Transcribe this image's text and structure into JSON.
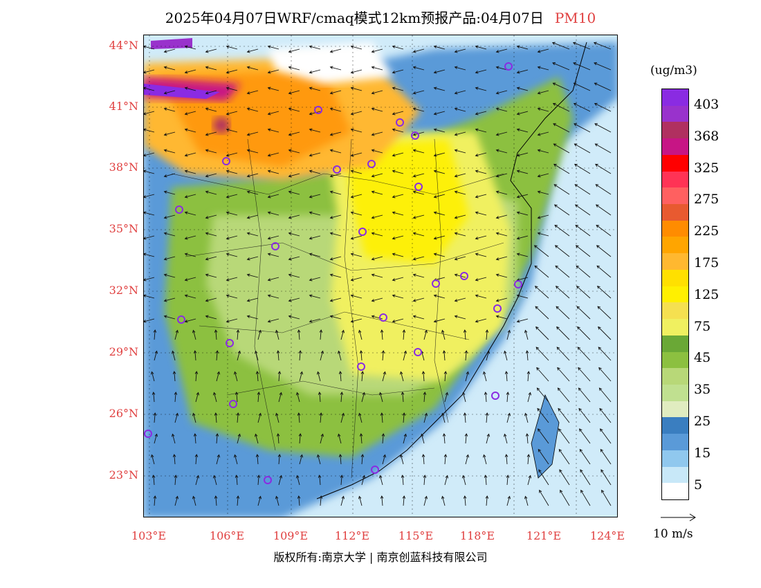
{
  "title": "2025年04月07日WRF/cmaq模式12km预报产品:04月07日",
  "pollutant": "PM10",
  "lat_labels": [
    "44°N",
    "41°N",
    "38°N",
    "35°N",
    "32°N",
    "29°N",
    "26°N",
    "23°N"
  ],
  "lon_labels": [
    "103°E",
    "106°E",
    "109°E",
    "112°E",
    "115°E",
    "118°E",
    "121°E",
    "124°E"
  ],
  "colorbar": {
    "unit": "(ug/m3)",
    "labels": [
      "403",
      "368",
      "325",
      "275",
      "225",
      "175",
      "125",
      "75",
      "45",
      "35",
      "25",
      "15",
      "5"
    ],
    "colors": [
      "#8a2be2",
      "#9932cc",
      "#b03060",
      "#c71585",
      "#ff0000",
      "#ff3355",
      "#ff6060",
      "#e85a30",
      "#ff8c00",
      "#ffa500",
      "#ffb830",
      "#ffe000",
      "#fff000",
      "#f5e050",
      "#f0f060",
      "#6aa836",
      "#8cc040",
      "#b8d878",
      "#c0e090",
      "#e0ecc0",
      "#3a7ec0",
      "#5a9ad8",
      "#90c8ee",
      "#c8e8f8",
      "#ffffff"
    ]
  },
  "wind_ref": "10 m/s",
  "copyright": "版权所有:南京大学 | 南京创蓝科技有限公司"
}
